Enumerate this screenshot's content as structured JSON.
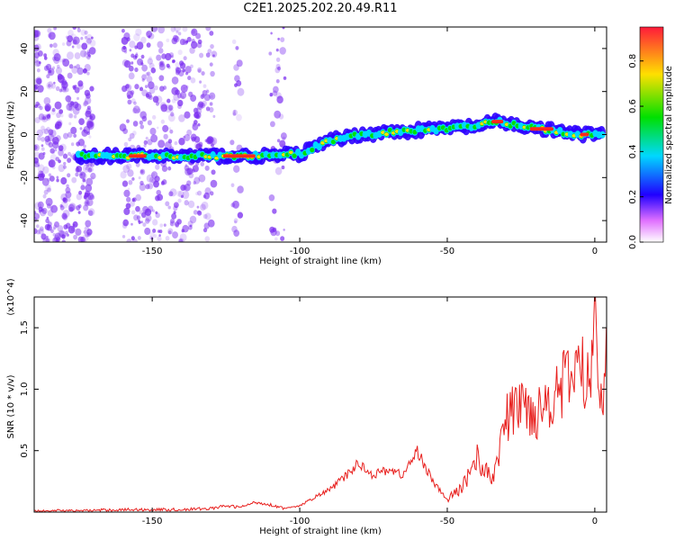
{
  "title": "C2E1.2025.202.20.49.R11",
  "colors": {
    "spectrogram_speckle": "#7a2cf0",
    "spectrogram_track": [
      "#2c00ff",
      "#00d8ff",
      "#00e000",
      "#ffe000",
      "#ff2a1a"
    ],
    "snr_line": "#e8201e"
  },
  "chart_data": [
    {
      "type": "heatmap",
      "xlabel": "Height of straight line (km)",
      "ylabel": "Frequency (Hz)",
      "xlim": [
        -190,
        4
      ],
      "ylim": [
        -50,
        50
      ],
      "x_ticks": [
        -150,
        -100,
        -50,
        0
      ],
      "y_ticks": [
        -40,
        -20,
        0,
        20,
        40
      ],
      "colorbar": {
        "label": "Normalized spectral amplitude",
        "range": [
          0,
          0.95
        ],
        "ticks": [
          "0.0",
          "0.2",
          "0.4",
          "0.6",
          "0.8"
        ]
      },
      "track": {
        "x": [
          -175,
          -150,
          -130,
          -110,
          -100,
          -90,
          -80,
          -70,
          -60,
          -50,
          -40,
          -33,
          -25,
          -15,
          -5,
          3
        ],
        "y": [
          -10,
          -10,
          -10,
          -10,
          -9,
          -3,
          0,
          1,
          2,
          3,
          4,
          6,
          4,
          2,
          0,
          0
        ]
      }
    },
    {
      "type": "line",
      "xlabel": "Height of straight line (km)",
      "ylabel": "SNR (10 * v/v)",
      "y_multiplier": "(x10^4)",
      "xlim": [
        -190,
        4
      ],
      "ylim": [
        0,
        1.75
      ],
      "x_ticks": [
        -150,
        -100,
        -50,
        0
      ],
      "y_ticks": [
        "0.5",
        "1.0",
        "1.5"
      ],
      "series": [
        {
          "x": [
            -190,
            -175,
            -160,
            -150,
            -140,
            -130,
            -125,
            -120,
            -115,
            -110,
            -105,
            -100,
            -95,
            -90,
            -85,
            -80,
            -75,
            -70,
            -65,
            -60,
            -55,
            -50,
            -45,
            -40,
            -35,
            -30,
            -25,
            -20,
            -15,
            -10,
            -5,
            -2,
            0,
            2,
            4
          ],
          "y": [
            0.01,
            0.01,
            0.02,
            0.02,
            0.02,
            0.03,
            0.05,
            0.04,
            0.08,
            0.06,
            0.03,
            0.05,
            0.12,
            0.18,
            0.28,
            0.4,
            0.3,
            0.35,
            0.3,
            0.5,
            0.25,
            0.1,
            0.2,
            0.45,
            0.25,
            0.75,
            0.9,
            0.8,
            0.95,
            1.05,
            1.2,
            1.0,
            1.7,
            1.0,
            1.2
          ]
        }
      ]
    }
  ]
}
